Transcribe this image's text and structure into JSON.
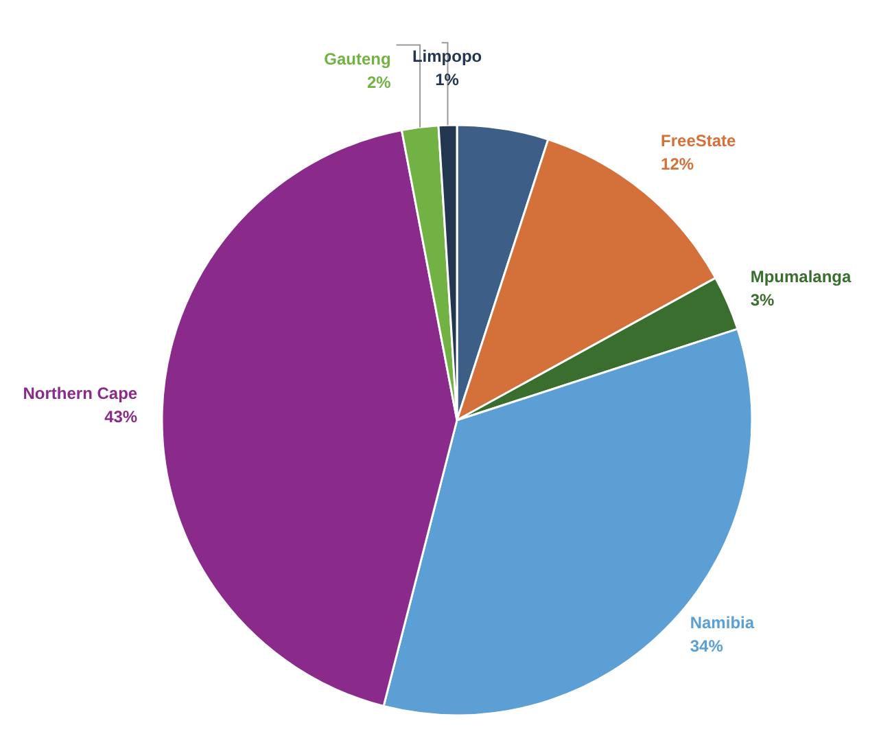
{
  "chart_data": {
    "type": "pie",
    "categories": [
      null,
      "FreeState",
      "Mpumalanga",
      "Namibia",
      "Northern Cape",
      "Gauteng",
      "Limpopo"
    ],
    "values": [
      5,
      12,
      3,
      34,
      43,
      2,
      1
    ],
    "colors": [
      "#3d5f87",
      "#d4713a",
      "#3a6e2e",
      "#5b9fd4",
      "#8a2a8a",
      "#72b244",
      "#22374f"
    ],
    "value_labels": [
      null,
      "12%",
      "3%",
      "34%",
      "43%",
      "2%",
      "1%"
    ]
  }
}
